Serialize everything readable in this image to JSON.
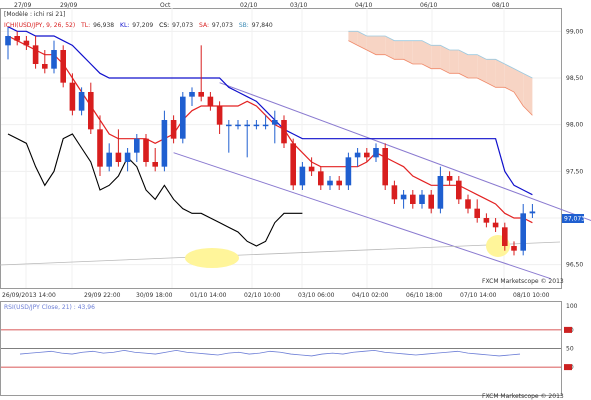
{
  "colors": {
    "bull": "#1f5fd0",
    "bear": "#d81e1e",
    "tenkan": "#e32222",
    "kijun": "#1010cc",
    "chikou": "#000000",
    "cloud_bull": "#cfe6f2",
    "cloud_bear": "#f7d4c4",
    "cloud_edge_a": "#f08a6a",
    "cloud_edge_b": "#9ccae0",
    "channel": "#8a7ad0",
    "rsi_line": "#6b7dd6",
    "rsi_level": "#cc2222",
    "highlight": "#fff59a"
  },
  "main_panel": {
    "title": "[Modèle : ichi rsi 21]",
    "legend": {
      "symbol": "ICHI(USD/JPY, 9, 26, 52)",
      "tl_label": "TL:",
      "tl_value": "96,938",
      "kl_label": "KL:",
      "kl_value": "97,209",
      "cs_label": "CS:",
      "cs_value": "97,073",
      "sa_label": "SA:",
      "sa_value": "97,073",
      "sb_label": "SB:",
      "sb_value": "97,840"
    },
    "top_dates": [
      "27/09",
      "29/09",
      "Oct",
      "02/10",
      "03/10",
      "04/10",
      "06/10",
      "08/10"
    ],
    "price_ticks": [
      "99,00",
      "98,50",
      "98,00",
      "97,50",
      "97,00",
      "96,50"
    ],
    "current_price": "97,073",
    "watermark": "FXCM Marketscope © 2013",
    "time_labels": [
      "26/09/2013 14:00",
      "29/09 22:00",
      "30/09 18:00",
      "01/10 14:00",
      "02/10 10:00",
      "03/10 06:00",
      "04/10 02:00",
      "06/10 18:00",
      "07/10 14:00",
      "08/10 10:00"
    ]
  },
  "rsi_panel": {
    "label": "RSI(USD/JPY Close, 21) : 43,96",
    "ticks": [
      "100",
      "70",
      "50",
      "30"
    ],
    "watermark": "FXCM Marketscope © 2013"
  },
  "chart_data": {
    "type": "candlestick",
    "ylim": [
      96.25,
      99.25
    ],
    "candles": [
      {
        "o": 98.85,
        "h": 99.05,
        "l": 98.7,
        "c": 98.95
      },
      {
        "o": 98.95,
        "h": 99.0,
        "l": 98.85,
        "c": 98.9
      },
      {
        "o": 98.9,
        "h": 98.95,
        "l": 98.8,
        "c": 98.85
      },
      {
        "o": 98.85,
        "h": 98.95,
        "l": 98.6,
        "c": 98.65
      },
      {
        "o": 98.65,
        "h": 98.8,
        "l": 98.55,
        "c": 98.6
      },
      {
        "o": 98.6,
        "h": 98.9,
        "l": 98.55,
        "c": 98.8
      },
      {
        "o": 98.8,
        "h": 98.85,
        "l": 98.4,
        "c": 98.45
      },
      {
        "o": 98.45,
        "h": 98.55,
        "l": 98.1,
        "c": 98.15
      },
      {
        "o": 98.15,
        "h": 98.4,
        "l": 98.1,
        "c": 98.35
      },
      {
        "o": 98.35,
        "h": 98.45,
        "l": 97.9,
        "c": 97.95
      },
      {
        "o": 97.95,
        "h": 98.1,
        "l": 97.45,
        "c": 97.55
      },
      {
        "o": 97.55,
        "h": 97.8,
        "l": 97.5,
        "c": 97.7
      },
      {
        "o": 97.7,
        "h": 97.95,
        "l": 97.55,
        "c": 97.6
      },
      {
        "o": 97.6,
        "h": 97.75,
        "l": 97.5,
        "c": 97.7
      },
      {
        "o": 97.7,
        "h": 97.9,
        "l": 97.6,
        "c": 97.85
      },
      {
        "o": 97.85,
        "h": 97.9,
        "l": 97.55,
        "c": 97.6
      },
      {
        "o": 97.6,
        "h": 97.75,
        "l": 97.5,
        "c": 97.55
      },
      {
        "o": 97.55,
        "h": 98.15,
        "l": 97.5,
        "c": 98.05
      },
      {
        "o": 98.05,
        "h": 98.1,
        "l": 97.8,
        "c": 97.85
      },
      {
        "o": 97.85,
        "h": 98.35,
        "l": 97.8,
        "c": 98.3
      },
      {
        "o": 98.3,
        "h": 98.4,
        "l": 98.2,
        "c": 98.35
      },
      {
        "o": 98.35,
        "h": 98.85,
        "l": 98.25,
        "c": 98.3
      },
      {
        "o": 98.3,
        "h": 98.35,
        "l": 98.15,
        "c": 98.2
      },
      {
        "o": 98.2,
        "h": 98.25,
        "l": 97.9,
        "c": 98.0
      },
      {
        "o": 98.0,
        "h": 98.05,
        "l": 97.7,
        "c": 98.0
      },
      {
        "o": 98.0,
        "h": 98.05,
        "l": 97.95,
        "c": 98.0
      },
      {
        "o": 98.0,
        "h": 98.05,
        "l": 97.65,
        "c": 98.0
      },
      {
        "o": 98.0,
        "h": 98.05,
        "l": 97.95,
        "c": 98.0
      },
      {
        "o": 98.0,
        "h": 98.1,
        "l": 97.95,
        "c": 98.0
      },
      {
        "o": 98.0,
        "h": 98.15,
        "l": 97.8,
        "c": 98.05
      },
      {
        "o": 98.05,
        "h": 98.1,
        "l": 97.75,
        "c": 97.8
      },
      {
        "o": 97.8,
        "h": 97.85,
        "l": 97.3,
        "c": 97.35
      },
      {
        "o": 97.35,
        "h": 97.6,
        "l": 97.3,
        "c": 97.55
      },
      {
        "o": 97.55,
        "h": 97.65,
        "l": 97.45,
        "c": 97.5
      },
      {
        "o": 97.5,
        "h": 97.55,
        "l": 97.3,
        "c": 97.35
      },
      {
        "o": 97.35,
        "h": 97.45,
        "l": 97.3,
        "c": 97.4
      },
      {
        "o": 97.4,
        "h": 97.45,
        "l": 97.3,
        "c": 97.35
      },
      {
        "o": 97.35,
        "h": 97.7,
        "l": 97.3,
        "c": 97.65
      },
      {
        "o": 97.65,
        "h": 97.75,
        "l": 97.55,
        "c": 97.7
      },
      {
        "o": 97.7,
        "h": 97.75,
        "l": 97.6,
        "c": 97.65
      },
      {
        "o": 97.65,
        "h": 97.8,
        "l": 97.6,
        "c": 97.75
      },
      {
        "o": 97.75,
        "h": 97.8,
        "l": 97.3,
        "c": 97.35
      },
      {
        "o": 97.35,
        "h": 97.4,
        "l": 97.15,
        "c": 97.2
      },
      {
        "o": 97.2,
        "h": 97.3,
        "l": 97.1,
        "c": 97.25
      },
      {
        "o": 97.25,
        "h": 97.3,
        "l": 97.1,
        "c": 97.15
      },
      {
        "o": 97.15,
        "h": 97.3,
        "l": 97.1,
        "c": 97.25
      },
      {
        "o": 97.25,
        "h": 97.3,
        "l": 97.05,
        "c": 97.1
      },
      {
        "o": 97.1,
        "h": 97.55,
        "l": 97.05,
        "c": 97.45
      },
      {
        "o": 97.45,
        "h": 97.5,
        "l": 97.35,
        "c": 97.4
      },
      {
        "o": 97.4,
        "h": 97.45,
        "l": 97.15,
        "c": 97.2
      },
      {
        "o": 97.2,
        "h": 97.25,
        "l": 97.05,
        "c": 97.1
      },
      {
        "o": 97.1,
        "h": 97.2,
        "l": 96.95,
        "c": 97.0
      },
      {
        "o": 97.0,
        "h": 97.05,
        "l": 96.9,
        "c": 96.95
      },
      {
        "o": 96.95,
        "h": 97.0,
        "l": 96.85,
        "c": 96.9
      },
      {
        "o": 96.9,
        "h": 96.95,
        "l": 96.65,
        "c": 96.7
      },
      {
        "o": 96.7,
        "h": 96.75,
        "l": 96.6,
        "c": 96.65
      },
      {
        "o": 96.65,
        "h": 97.15,
        "l": 96.6,
        "c": 97.05
      },
      {
        "o": 97.05,
        "h": 97.15,
        "l": 97.0,
        "c": 97.07
      }
    ],
    "tenkan": [
      98.95,
      98.9,
      98.85,
      98.8,
      98.75,
      98.75,
      98.65,
      98.5,
      98.35,
      98.2,
      98.05,
      97.9,
      97.85,
      97.85,
      97.85,
      97.85,
      97.8,
      97.85,
      97.9,
      98.05,
      98.15,
      98.2,
      98.2,
      98.2,
      98.2,
      98.2,
      98.25,
      98.2,
      98.1,
      98.0,
      97.95,
      97.8,
      97.7,
      97.6,
      97.55,
      97.55,
      97.55,
      97.55,
      97.55,
      97.6,
      97.7,
      97.65,
      97.6,
      97.55,
      97.45,
      97.4,
      97.35,
      97.35,
      97.35,
      97.35,
      97.3,
      97.25,
      97.2,
      97.15,
      97.05,
      97.0,
      97.0,
      96.95
    ],
    "kijun": [
      99.05,
      99.0,
      99.0,
      98.95,
      98.95,
      98.95,
      98.9,
      98.85,
      98.75,
      98.65,
      98.55,
      98.5,
      98.5,
      98.5,
      98.5,
      98.5,
      98.5,
      98.5,
      98.5,
      98.5,
      98.5,
      98.5,
      98.5,
      98.5,
      98.4,
      98.35,
      98.3,
      98.25,
      98.15,
      98.05,
      97.95,
      97.9,
      97.85,
      97.85,
      97.85,
      97.85,
      97.85,
      97.85,
      97.85,
      97.85,
      97.85,
      97.85,
      97.85,
      97.85,
      97.85,
      97.85,
      97.85,
      97.85,
      97.85,
      97.85,
      97.85,
      97.85,
      97.85,
      97.85,
      97.5,
      97.35,
      97.3,
      97.25
    ],
    "span_a": [
      null,
      null,
      null,
      null,
      null,
      null,
      null,
      null,
      null,
      null,
      null,
      null,
      null,
      null,
      null,
      null,
      null,
      null,
      null,
      null,
      null,
      null,
      null,
      null,
      null,
      null,
      null,
      null,
      null,
      null,
      null,
      null,
      null,
      null,
      null,
      null,
      null,
      98.9,
      98.85,
      98.8,
      98.75,
      98.75,
      98.7,
      98.7,
      98.65,
      98.65,
      98.6,
      98.6,
      98.55,
      98.55,
      98.5,
      98.5,
      98.45,
      98.4,
      98.4,
      98.35,
      98.2,
      98.1
    ],
    "span_b": [
      null,
      null,
      null,
      null,
      null,
      null,
      null,
      null,
      null,
      null,
      null,
      null,
      null,
      null,
      null,
      null,
      null,
      null,
      null,
      null,
      null,
      null,
      null,
      null,
      null,
      null,
      null,
      null,
      null,
      null,
      null,
      null,
      null,
      null,
      null,
      null,
      null,
      99.0,
      99.0,
      98.95,
      98.95,
      98.95,
      98.9,
      98.9,
      98.9,
      98.9,
      98.85,
      98.85,
      98.8,
      98.8,
      98.75,
      98.75,
      98.7,
      98.7,
      98.65,
      98.6,
      98.55,
      98.5
    ],
    "chikou": [
      97.9,
      97.85,
      97.8,
      97.55,
      97.35,
      97.5,
      97.85,
      97.9,
      97.75,
      97.6,
      97.3,
      97.35,
      97.45,
      97.65,
      97.55,
      97.3,
      97.2,
      97.35,
      97.2,
      97.1,
      97.05,
      97.05,
      97.0,
      96.95,
      96.9,
      96.85,
      96.75,
      96.7,
      96.75,
      96.95,
      97.05,
      97.05,
      97.05
    ],
    "channel_upper": [
      [
        23,
        98.45
      ],
      [
        64,
        96.95
      ]
    ],
    "channel_lower": [
      [
        18,
        97.7
      ],
      [
        59,
        96.35
      ]
    ],
    "rsi_values": [
      44,
      45,
      46,
      47,
      45,
      44,
      46,
      47,
      45,
      46,
      48,
      46,
      45,
      44,
      46,
      48,
      46,
      45,
      44,
      43,
      45,
      46,
      44,
      45,
      47,
      46,
      44,
      43,
      42,
      44,
      45,
      44,
      46,
      47,
      48,
      46,
      45,
      44,
      43,
      44,
      45,
      46,
      47,
      45,
      44,
      43,
      42,
      43,
      44
    ],
    "rsi_levels": [
      70,
      50,
      30
    ]
  }
}
